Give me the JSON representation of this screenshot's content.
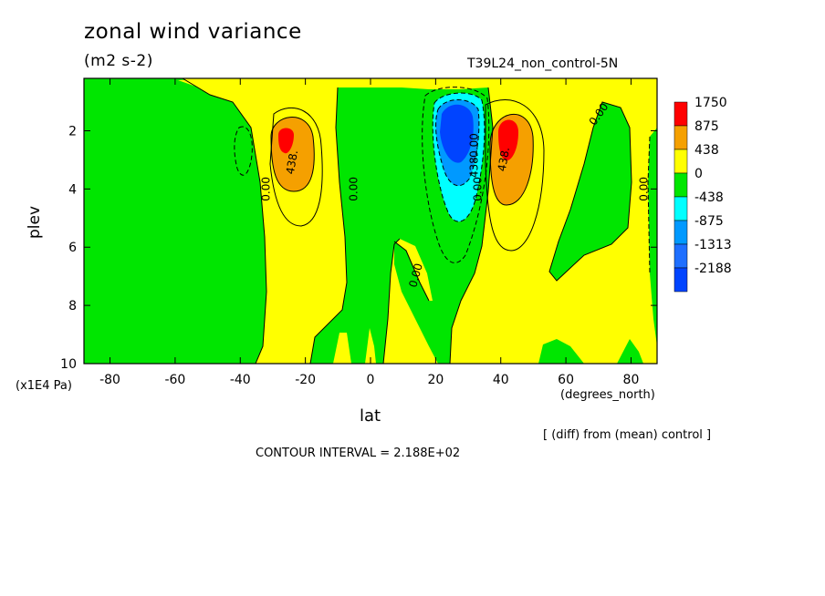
{
  "chart_data": {
    "type": "heatmap",
    "title": "zonal wind variance",
    "units": "(m2 s-2)",
    "run_label": "T39L24_non_control-5N",
    "xlabel": "lat",
    "x_units": "(degrees_north)",
    "ylabel": "plev",
    "y_units": "(x1E4 Pa)",
    "note": "[ (diff) from (mean) control ]",
    "contour_interval": "CONTOUR INTERVAL = 2.188E+02",
    "x_ticks": [
      "-80",
      "-60",
      "-40",
      "-20",
      "0",
      "20",
      "40",
      "60",
      "80"
    ],
    "y_ticks": [
      "2",
      "4",
      "6",
      "8",
      "10"
    ],
    "xlim": [
      -88,
      88
    ],
    "ylim": [
      10,
      0.2
    ],
    "legend": {
      "placement": "right",
      "levels": [
        "1750",
        "875",
        "438",
        "0",
        "-438",
        "-875",
        "-1313",
        "-2188"
      ],
      "colors": [
        "#ff0000",
        "#f5a000",
        "#ffff00",
        "#00e600",
        "#00ffff",
        "#0099ff",
        "#1e6fff",
        "#0044ff"
      ]
    },
    "contour_labels": [
      "438.",
      "438.",
      "0.00",
      "0.00",
      "0.00",
      "0.00",
      "0.00",
      "0.00",
      "438.",
      "0.00"
    ],
    "features": [
      {
        "name": "southern positive maximum",
        "lat": -26,
        "plev": 2.5,
        "value": 1750
      },
      {
        "name": "northern positive maximum",
        "lat": 42,
        "plev": 2.2,
        "value": 1750
      },
      {
        "name": "negative minimum",
        "lat": 25,
        "plev": 2.0,
        "value": -2188
      }
    ]
  }
}
